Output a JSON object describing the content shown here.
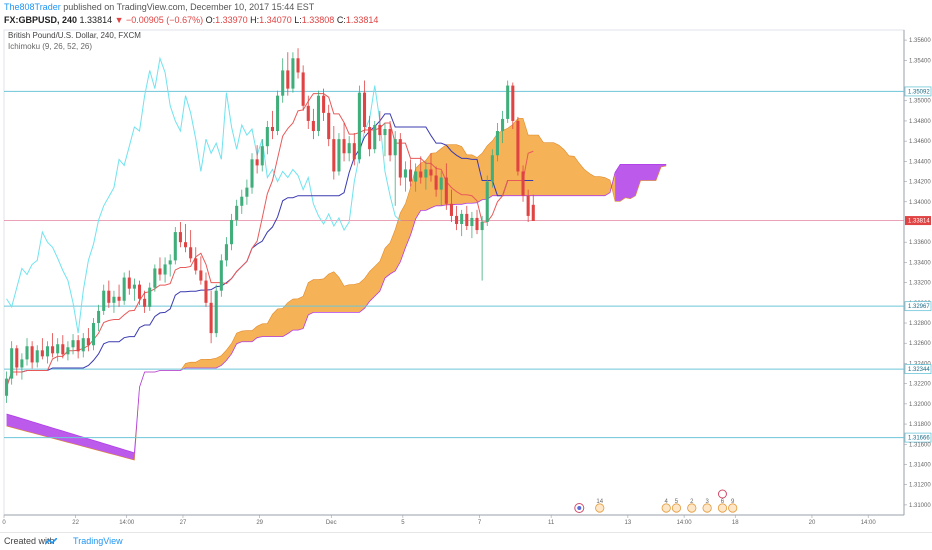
{
  "header": {
    "author": "The808Trader",
    "published": "published on TradingView.com, December 10, 2017 15:44 EST",
    "symbol": "FX:GBPUSD, 240",
    "last": "1.33814",
    "change": "▼ −0.00905 (−0.67%)",
    "o_label": "O:",
    "o_value": "1.33970",
    "h_label": "H:",
    "h_value": "1.34070",
    "l_label": "L:",
    "l_value": "1.33808",
    "c_label": "C:",
    "c_value": "1.33814"
  },
  "legend": {
    "title": "British Pound/U.S. Dollar, 240, FXCM",
    "indicator": "Ichimoku (9, 26, 52, 26)"
  },
  "footer": {
    "created_with": "Created with",
    "brand": "TradingView"
  },
  "colors": {
    "up": "#3fae7a",
    "down": "#e04343",
    "conversion": "#e85a5a",
    "base": "#3b3bb0",
    "lagging": "#6fe3ef",
    "cloud_bull": "#f5a43a",
    "cloud_bear": "#b03ee8",
    "hline": "#6cc5d8",
    "price_line": "#e06a8a"
  },
  "chart_data": {
    "type": "candlestick",
    "timeframe": "240",
    "y_range": [
      1.309,
      1.357
    ],
    "x_range_bars": [
      0,
      176
    ],
    "y_ticks": [
      "1.35600",
      "1.35400",
      "1.35092",
      "1.35000",
      "1.34800",
      "1.34600",
      "1.34400",
      "1.34200",
      "1.34000",
      "1.33814",
      "1.33600",
      "1.33400",
      "1.33200",
      "1.33000",
      "1.32967",
      "1.32800",
      "1.32600",
      "1.32400",
      "1.32344",
      "1.32200",
      "1.32000",
      "1.31800",
      "1.31666",
      "1.31600",
      "1.31400",
      "1.31200",
      "1.31000"
    ],
    "x_labels": [
      {
        "text": "0",
        "bar": 0
      },
      {
        "text": "22",
        "bar": 14
      },
      {
        "text": "14:00",
        "bar": 24
      },
      {
        "text": "27",
        "bar": 35
      },
      {
        "text": "29",
        "bar": 50
      },
      {
        "text": "Dec",
        "bar": 64
      },
      {
        "text": "5",
        "bar": 78
      },
      {
        "text": "7",
        "bar": 93
      },
      {
        "text": "11",
        "bar": 107
      },
      {
        "text": "13",
        "bar": 122
      },
      {
        "text": "14:00",
        "bar": 133
      },
      {
        "text": "18",
        "bar": 143
      },
      {
        "text": "20",
        "bar": 158
      },
      {
        "text": "14:00",
        "bar": 169
      }
    ],
    "horizontal_levels": [
      {
        "value": 1.35092,
        "label": "1.35092"
      },
      {
        "value": 1.32967,
        "label": "1.32967"
      },
      {
        "value": 1.32344,
        "label": "1.32344"
      },
      {
        "value": 1.31666,
        "label": "1.31666"
      }
    ],
    "last_price": {
      "value": 1.33814,
      "label": "1.33814"
    },
    "candles": [
      [
        1.3208,
        1.3232,
        1.3201,
        1.3225
      ],
      [
        1.3225,
        1.3262,
        1.3219,
        1.3255
      ],
      [
        1.3255,
        1.3258,
        1.3228,
        1.3236
      ],
      [
        1.3236,
        1.325,
        1.3224,
        1.3244
      ],
      [
        1.3244,
        1.3265,
        1.3238,
        1.3257
      ],
      [
        1.3257,
        1.3262,
        1.3235,
        1.3241
      ],
      [
        1.3241,
        1.3258,
        1.3236,
        1.3253
      ],
      [
        1.3253,
        1.3265,
        1.3244,
        1.3247
      ],
      [
        1.3247,
        1.3262,
        1.324,
        1.3257
      ],
      [
        1.3257,
        1.327,
        1.3246,
        1.325
      ],
      [
        1.325,
        1.3265,
        1.3242,
        1.3259
      ],
      [
        1.3259,
        1.3268,
        1.3245,
        1.3249
      ],
      [
        1.3249,
        1.3262,
        1.3243,
        1.3256
      ],
      [
        1.3256,
        1.3269,
        1.3249,
        1.3263
      ],
      [
        1.3263,
        1.3268,
        1.3245,
        1.3252
      ],
      [
        1.3252,
        1.327,
        1.3246,
        1.3265
      ],
      [
        1.3265,
        1.3275,
        1.3252,
        1.3258
      ],
      [
        1.3258,
        1.3285,
        1.3253,
        1.328
      ],
      [
        1.328,
        1.3298,
        1.3272,
        1.3292
      ],
      [
        1.3292,
        1.3318,
        1.3288,
        1.3312
      ],
      [
        1.3312,
        1.3322,
        1.3295,
        1.33
      ],
      [
        1.33,
        1.3312,
        1.329,
        1.3306
      ],
      [
        1.3306,
        1.3318,
        1.3296,
        1.3302
      ],
      [
        1.3302,
        1.333,
        1.3298,
        1.3325
      ],
      [
        1.3325,
        1.3332,
        1.3308,
        1.3314
      ],
      [
        1.3314,
        1.3324,
        1.3302,
        1.3318
      ],
      [
        1.3318,
        1.3322,
        1.3298,
        1.3304
      ],
      [
        1.3304,
        1.3312,
        1.329,
        1.3296
      ],
      [
        1.3296,
        1.332,
        1.3292,
        1.3315
      ],
      [
        1.3315,
        1.3338,
        1.3311,
        1.3334
      ],
      [
        1.3334,
        1.3345,
        1.3322,
        1.3328
      ],
      [
        1.3328,
        1.3345,
        1.332,
        1.3338
      ],
      [
        1.3338,
        1.3348,
        1.3326,
        1.3342
      ],
      [
        1.3342,
        1.3375,
        1.3338,
        1.337
      ],
      [
        1.337,
        1.338,
        1.3355,
        1.336
      ],
      [
        1.336,
        1.3378,
        1.335,
        1.3355
      ],
      [
        1.3355,
        1.3372,
        1.334,
        1.3344
      ],
      [
        1.3344,
        1.3355,
        1.3328,
        1.3332
      ],
      [
        1.3332,
        1.3346,
        1.3318,
        1.3322
      ],
      [
        1.3322,
        1.333,
        1.3296,
        1.33
      ],
      [
        1.33,
        1.3312,
        1.326,
        1.327
      ],
      [
        1.327,
        1.3318,
        1.3266,
        1.3312
      ],
      [
        1.3312,
        1.3348,
        1.3306,
        1.3342
      ],
      [
        1.3342,
        1.3365,
        1.3336,
        1.3358
      ],
      [
        1.3358,
        1.3388,
        1.3352,
        1.3382
      ],
      [
        1.3382,
        1.3402,
        1.3376,
        1.3396
      ],
      [
        1.3396,
        1.3412,
        1.3388,
        1.3405
      ],
      [
        1.3405,
        1.3422,
        1.3397,
        1.3414
      ],
      [
        1.3414,
        1.3448,
        1.3408,
        1.3442
      ],
      [
        1.3442,
        1.3456,
        1.3428,
        1.3436
      ],
      [
        1.3436,
        1.3462,
        1.343,
        1.3455
      ],
      [
        1.3455,
        1.348,
        1.3447,
        1.3474
      ],
      [
        1.3474,
        1.349,
        1.3462,
        1.347
      ],
      [
        1.347,
        1.351,
        1.3466,
        1.3505
      ],
      [
        1.3505,
        1.3542,
        1.3498,
        1.353
      ],
      [
        1.353,
        1.3548,
        1.3505,
        1.3512
      ],
      [
        1.3512,
        1.3548,
        1.3508,
        1.3542
      ],
      [
        1.3542,
        1.3552,
        1.3522,
        1.3528
      ],
      [
        1.3528,
        1.3535,
        1.349,
        1.3495
      ],
      [
        1.3495,
        1.3505,
        1.3472,
        1.348
      ],
      [
        1.348,
        1.3492,
        1.3462,
        1.347
      ],
      [
        1.347,
        1.351,
        1.3465,
        1.3505
      ],
      [
        1.3505,
        1.3512,
        1.348,
        1.3488
      ],
      [
        1.3488,
        1.3496,
        1.3455,
        1.3462
      ],
      [
        1.3462,
        1.3475,
        1.3422,
        1.343
      ],
      [
        1.343,
        1.3468,
        1.3426,
        1.3462
      ],
      [
        1.3462,
        1.3478,
        1.344,
        1.3448
      ],
      [
        1.3448,
        1.3465,
        1.344,
        1.3458
      ],
      [
        1.3458,
        1.3468,
        1.3436,
        1.3442
      ],
      [
        1.3442,
        1.3515,
        1.3438,
        1.3508
      ],
      [
        1.3508,
        1.352,
        1.3468,
        1.3474
      ],
      [
        1.3474,
        1.3485,
        1.3445,
        1.3452
      ],
      [
        1.3452,
        1.348,
        1.3448,
        1.3476
      ],
      [
        1.3476,
        1.349,
        1.346,
        1.3466
      ],
      [
        1.3466,
        1.3478,
        1.3445,
        1.3472
      ],
      [
        1.3472,
        1.348,
        1.344,
        1.3446
      ],
      [
        1.3446,
        1.347,
        1.3396,
        1.3462
      ],
      [
        1.3462,
        1.3468,
        1.3416,
        1.3424
      ],
      [
        1.3424,
        1.344,
        1.341,
        1.3432
      ],
      [
        1.3432,
        1.3442,
        1.3415,
        1.342
      ],
      [
        1.342,
        1.3438,
        1.341,
        1.343
      ],
      [
        1.343,
        1.3445,
        1.3418,
        1.3424
      ],
      [
        1.3424,
        1.344,
        1.3412,
        1.3432
      ],
      [
        1.3432,
        1.3448,
        1.342,
        1.3426
      ],
      [
        1.3426,
        1.3435,
        1.3405,
        1.3412
      ],
      [
        1.3412,
        1.343,
        1.3396,
        1.3424
      ],
      [
        1.3424,
        1.3438,
        1.3392,
        1.3398
      ],
      [
        1.3398,
        1.3412,
        1.338,
        1.3386
      ],
      [
        1.3386,
        1.3396,
        1.3372,
        1.3378
      ],
      [
        1.3378,
        1.3392,
        1.3366,
        1.3388
      ],
      [
        1.3388,
        1.3396,
        1.3372,
        1.3376
      ],
      [
        1.3376,
        1.339,
        1.3364,
        1.3384
      ],
      [
        1.3384,
        1.3392,
        1.3368,
        1.3372
      ],
      [
        1.3372,
        1.3386,
        1.3322,
        1.338
      ],
      [
        1.338,
        1.3426,
        1.3376,
        1.342
      ],
      [
        1.342,
        1.3452,
        1.3414,
        1.3446
      ],
      [
        1.3446,
        1.3478,
        1.344,
        1.347
      ],
      [
        1.347,
        1.349,
        1.3458,
        1.3482
      ],
      [
        1.3482,
        1.352,
        1.3478,
        1.3515
      ],
      [
        1.3515,
        1.3518,
        1.3472,
        1.348
      ],
      [
        1.348,
        1.3484,
        1.3426,
        1.343
      ],
      [
        1.343,
        1.3436,
        1.34,
        1.3406
      ],
      [
        1.3406,
        1.3412,
        1.338,
        1.3386
      ],
      [
        1.3397,
        1.3407,
        1.3381,
        1.3381
      ]
    ],
    "ichimoku": {
      "params": [
        9,
        26,
        52,
        26
      ],
      "cloud_bars": [
        0,
        143
      ]
    },
    "event_markers": [
      {
        "bar": 116,
        "label": "14"
      },
      {
        "bar": 129,
        "label": "4"
      },
      {
        "bar": 131,
        "label": "5"
      },
      {
        "bar": 134,
        "label": "2"
      },
      {
        "bar": 137,
        "label": "3"
      },
      {
        "bar": 140,
        "label": "6"
      },
      {
        "bar": 142,
        "label": "9"
      }
    ]
  }
}
